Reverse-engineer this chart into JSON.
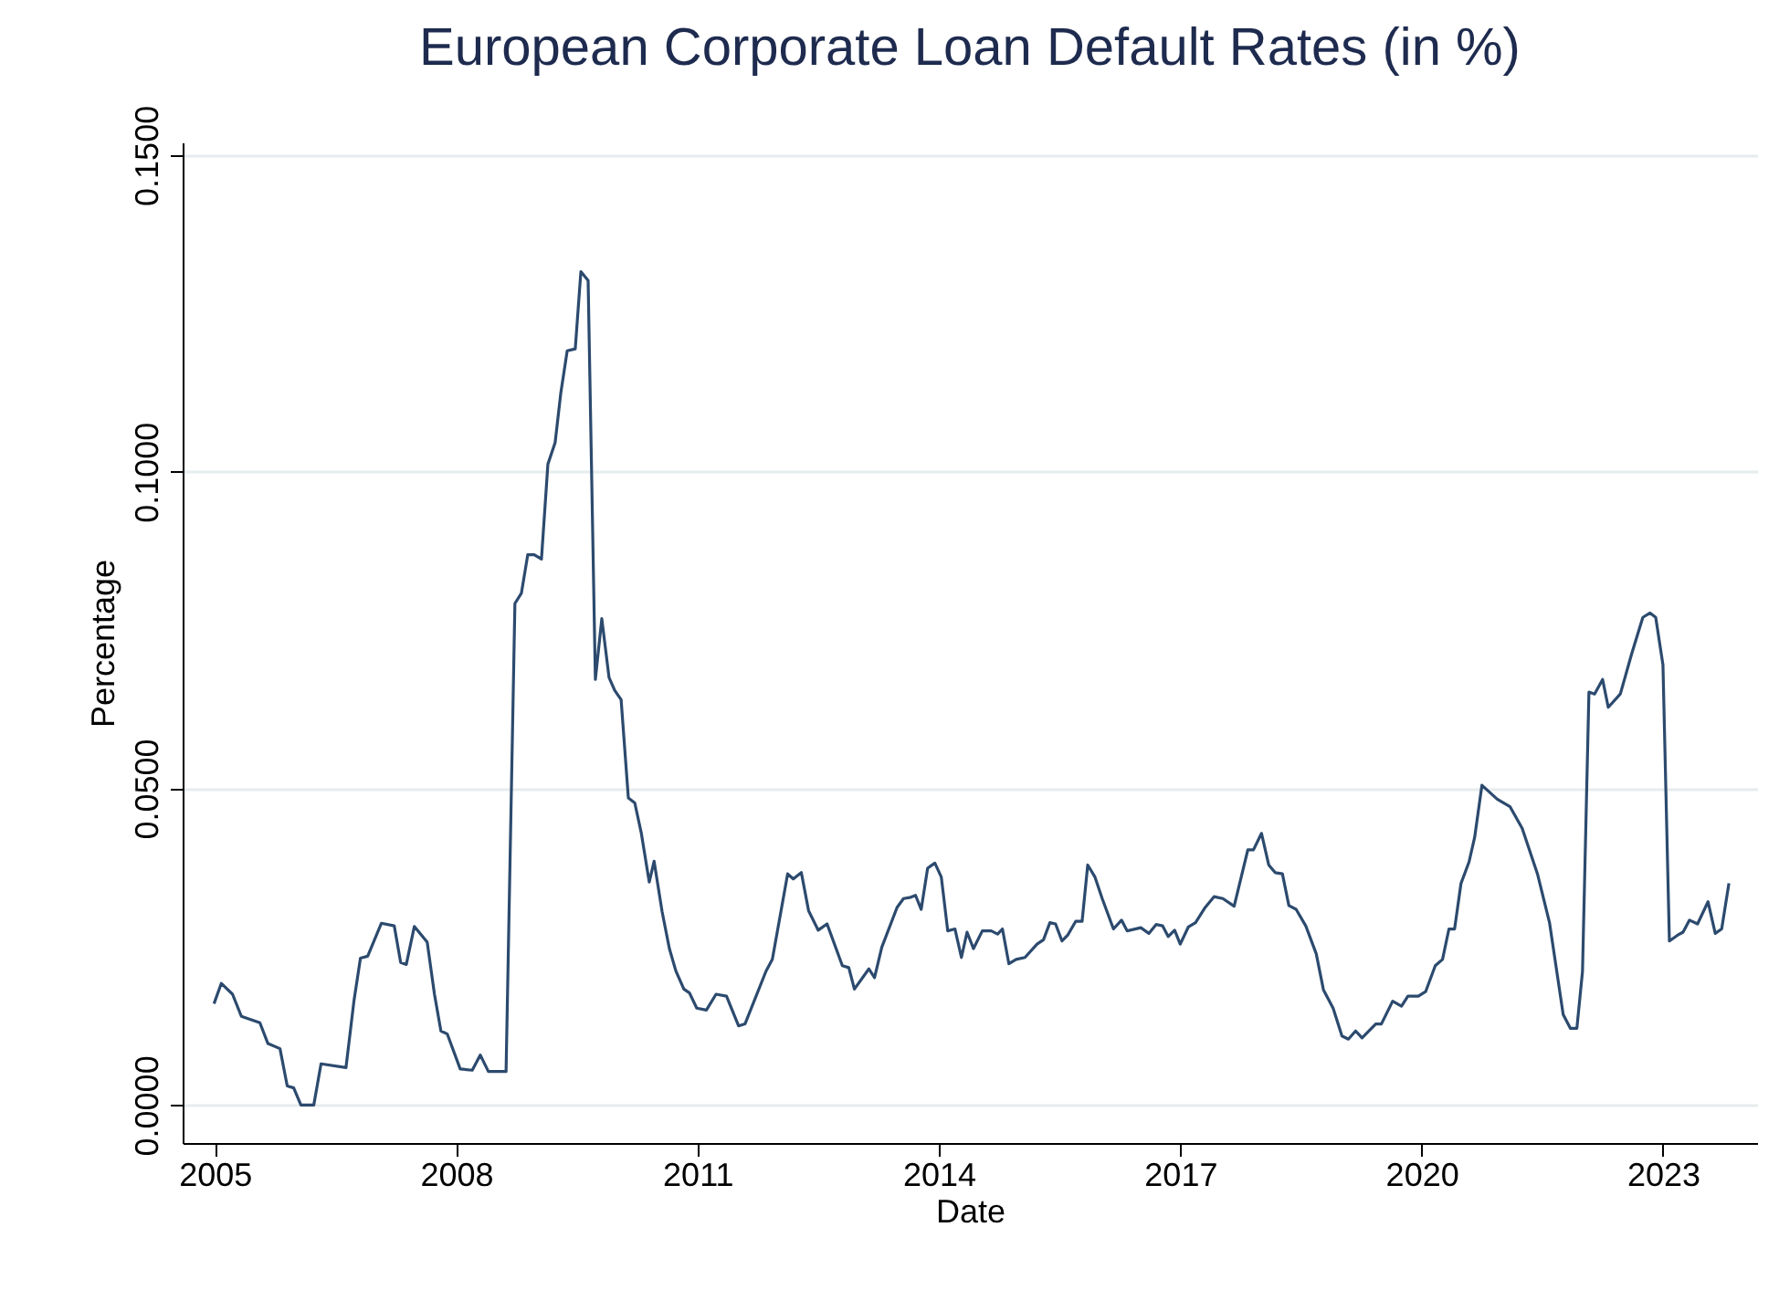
{
  "chart_data": {
    "type": "line",
    "title": "European Corporate Loan Default Rates (in %)",
    "xlabel": "Date",
    "ylabel": "Percentage",
    "x": [
      2004.99,
      2005.08,
      2005.22,
      2005.33,
      2005.56,
      2005.66,
      2005.81,
      2005.9,
      2005.98,
      2006.07,
      2006.23,
      2006.32,
      2006.63,
      2006.73,
      2006.81,
      2006.9,
      2007.07,
      2007.23,
      2007.31,
      2007.38,
      2007.48,
      2007.64,
      2007.73,
      2007.81,
      2007.89,
      2008.05,
      2008.2,
      2008.3,
      2008.4,
      2008.62,
      2008.73,
      2008.81,
      2008.89,
      2008.97,
      2009.06,
      2009.14,
      2009.23,
      2009.3,
      2009.38,
      2009.48,
      2009.55,
      2009.64,
      2009.73,
      2009.81,
      2009.9,
      2009.97,
      2010.05,
      2010.14,
      2010.22,
      2010.3,
      2010.4,
      2010.46,
      2010.56,
      2010.65,
      2010.73,
      2010.83,
      2010.9,
      2010.99,
      2011.11,
      2011.23,
      2011.36,
      2011.51,
      2011.59,
      2011.85,
      2011.93,
      2012.12,
      2012.19,
      2012.29,
      2012.38,
      2012.5,
      2012.61,
      2012.8,
      2012.88,
      2012.95,
      2013.13,
      2013.2,
      2013.29,
      2013.48,
      2013.56,
      2013.65,
      2013.71,
      2013.78,
      2013.86,
      2013.95,
      2014.03,
      2014.11,
      2014.2,
      2014.28,
      2014.35,
      2014.43,
      2014.54,
      2014.65,
      2014.73,
      2014.79,
      2014.87,
      2014.96,
      2015.07,
      2015.22,
      2015.3,
      2015.38,
      2015.45,
      2015.53,
      2015.6,
      2015.7,
      2015.78,
      2015.85,
      2015.94,
      2016.03,
      2016.17,
      2016.27,
      2016.34,
      2016.51,
      2016.61,
      2016.7,
      2016.78,
      2016.85,
      2016.93,
      2017.0,
      2017.1,
      2017.19,
      2017.31,
      2017.42,
      2017.53,
      2017.67,
      2017.84,
      2017.91,
      2018.01,
      2018.1,
      2018.18,
      2018.27,
      2018.35,
      2018.44,
      2018.56,
      2018.69,
      2018.78,
      2018.9,
      2019.01,
      2019.09,
      2019.18,
      2019.26,
      2019.43,
      2019.5,
      2019.64,
      2019.75,
      2019.83,
      2019.96,
      2020.05,
      2020.17,
      2020.26,
      2020.34,
      2020.41,
      2020.49,
      2020.59,
      2020.66,
      2020.75,
      2020.94,
      2021.1,
      2021.25,
      2021.44,
      2021.59,
      2021.76,
      2021.85,
      2021.93,
      2022.0,
      2022.08,
      2022.15,
      2022.25,
      2022.32,
      2022.47,
      2022.61,
      2022.75,
      2022.84,
      2022.91,
      2023.0,
      2023.08,
      2023.18,
      2023.25,
      2023.33,
      2023.43,
      2023.56,
      2023.65,
      2023.73,
      2023.82
    ],
    "series": [
      {
        "color": "#2c4a6e",
        "values": [
          0.016,
          0.0192,
          0.0175,
          0.014,
          0.013,
          0.0097,
          0.0089,
          0.003,
          0.0027,
          0.0,
          0.0,
          0.0065,
          0.0059,
          0.0165,
          0.0232,
          0.0235,
          0.0287,
          0.0283,
          0.0225,
          0.0222,
          0.0282,
          0.0257,
          0.0175,
          0.0117,
          0.0112,
          0.0057,
          0.0055,
          0.0079,
          0.0053,
          0.0053,
          0.0792,
          0.0808,
          0.0869,
          0.0869,
          0.0862,
          0.1012,
          0.1046,
          0.1124,
          0.1191,
          0.1194,
          0.1316,
          0.1302,
          0.0672,
          0.0768,
          0.0675,
          0.0655,
          0.064,
          0.0485,
          0.0477,
          0.043,
          0.0352,
          0.0385,
          0.0305,
          0.0247,
          0.0212,
          0.0183,
          0.0177,
          0.0153,
          0.015,
          0.0175,
          0.0172,
          0.0125,
          0.0128,
          0.0211,
          0.023,
          0.0365,
          0.0357,
          0.0367,
          0.0307,
          0.0276,
          0.0286,
          0.022,
          0.0217,
          0.0183,
          0.0215,
          0.0201,
          0.0249,
          0.0312,
          0.0326,
          0.0328,
          0.0331,
          0.0309,
          0.0374,
          0.0382,
          0.036,
          0.0275,
          0.0278,
          0.0233,
          0.0273,
          0.0247,
          0.0275,
          0.0275,
          0.027,
          0.0278,
          0.0223,
          0.023,
          0.0233,
          0.0254,
          0.0261,
          0.0288,
          0.0286,
          0.0259,
          0.0268,
          0.029,
          0.029,
          0.0379,
          0.036,
          0.0326,
          0.0278,
          0.0292,
          0.0275,
          0.028,
          0.0271,
          0.0285,
          0.0283,
          0.0266,
          0.0276,
          0.0254,
          0.0281,
          0.0288,
          0.0312,
          0.0329,
          0.0326,
          0.0314,
          0.0403,
          0.0403,
          0.0429,
          0.0379,
          0.0367,
          0.0365,
          0.0315,
          0.0309,
          0.0283,
          0.0239,
          0.0182,
          0.0153,
          0.0109,
          0.0104,
          0.0117,
          0.0106,
          0.0128,
          0.0128,
          0.0164,
          0.0156,
          0.0172,
          0.0172,
          0.0179,
          0.022,
          0.023,
          0.0278,
          0.0278,
          0.035,
          0.0384,
          0.0423,
          0.0505,
          0.0483,
          0.0471,
          0.0437,
          0.0365,
          0.0288,
          0.0143,
          0.0121,
          0.0121,
          0.0211,
          0.0652,
          0.0649,
          0.0672,
          0.0628,
          0.0649,
          0.0712,
          0.077,
          0.0777,
          0.077,
          0.0695,
          0.0259,
          0.0268,
          0.0273,
          0.0292,
          0.0286,
          0.0321,
          0.0271,
          0.0278,
          0.035
        ]
      }
    ],
    "xlim": [
      2004.6,
      2024.17
    ],
    "xticks": [
      2005,
      2008,
      2011,
      2014,
      2017,
      2020,
      2023
    ],
    "ylim": [
      -0.006,
      0.152
    ],
    "yticks": [
      {
        "value": 0,
        "label": "0.0000"
      },
      {
        "value": 0.05,
        "label": "0.0500"
      },
      {
        "value": 0.1,
        "label": "0.1000"
      },
      {
        "value": 0.15,
        "label": "0.1500"
      }
    ],
    "grid": "y",
    "marker": "none",
    "line_style": "solid"
  }
}
